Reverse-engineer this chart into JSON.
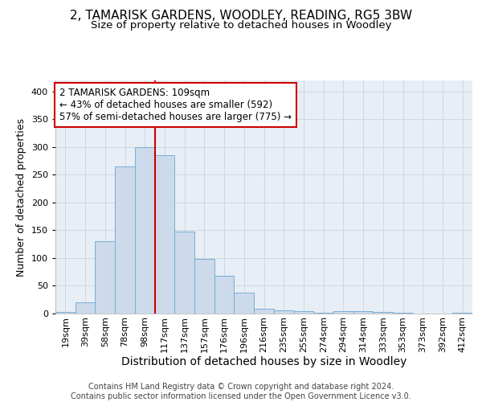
{
  "title_line1": "2, TAMARISK GARDENS, WOODLEY, READING, RG5 3BW",
  "title_line2": "Size of property relative to detached houses in Woodley",
  "xlabel": "Distribution of detached houses by size in Woodley",
  "ylabel": "Number of detached properties",
  "bar_color": "#ccdaeb",
  "bar_edge_color": "#7aadd4",
  "categories": [
    "19sqm",
    "39sqm",
    "58sqm",
    "78sqm",
    "98sqm",
    "117sqm",
    "137sqm",
    "157sqm",
    "176sqm",
    "196sqm",
    "216sqm",
    "235sqm",
    "255sqm",
    "274sqm",
    "294sqm",
    "314sqm",
    "333sqm",
    "353sqm",
    "373sqm",
    "392sqm",
    "412sqm"
  ],
  "values": [
    3,
    21,
    130,
    265,
    300,
    285,
    148,
    98,
    68,
    38,
    9,
    6,
    5,
    2,
    5,
    5,
    3,
    2,
    0,
    0,
    2
  ],
  "ylim": [
    0,
    420
  ],
  "yticks": [
    0,
    50,
    100,
    150,
    200,
    250,
    300,
    350,
    400
  ],
  "vline_pos": 4.5,
  "annotation_text": "2 TAMARISK GARDENS: 109sqm\n← 43% of detached houses are smaller (592)\n57% of semi-detached houses are larger (775) →",
  "annotation_box_color": "#ffffff",
  "annotation_box_edge": "#cc0000",
  "vline_color": "#cc0000",
  "grid_color": "#c8d4e0",
  "background_color": "#e8eef5",
  "footer_text": "Contains HM Land Registry data © Crown copyright and database right 2024.\nContains public sector information licensed under the Open Government Licence v3.0.",
  "title_fontsize": 11,
  "subtitle_fontsize": 9.5,
  "tick_fontsize": 8,
  "ylabel_fontsize": 9,
  "xlabel_fontsize": 10,
  "footer_fontsize": 7,
  "annotation_fontsize": 8.5
}
